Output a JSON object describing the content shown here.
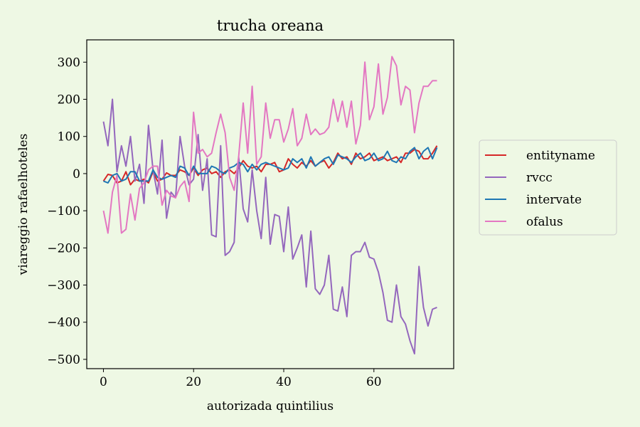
{
  "chart_data": {
    "type": "line",
    "title": "trucha oreana",
    "xlabel": "autorizada quintilius",
    "ylabel": "viareggio rafaelhoteles",
    "xlim": [
      -3.7,
      77.7
    ],
    "ylim": [
      -525,
      360
    ],
    "xticks": [
      0,
      20,
      40,
      60
    ],
    "yticks": [
      -500,
      -400,
      -300,
      -200,
      -100,
      0,
      100,
      200,
      300
    ],
    "grid": false,
    "legend_position": "center-right outside",
    "background": "#eef8e4",
    "series": [
      {
        "name": "entityname",
        "color": "#d62728",
        "values": [
          -20,
          -2,
          -5,
          -25,
          -20,
          5,
          -30,
          -15,
          -20,
          -15,
          -25,
          5,
          -20,
          -15,
          2,
          -5,
          -5,
          10,
          5,
          -5,
          15,
          -5,
          10,
          15,
          0,
          5,
          -10,
          5,
          10,
          0,
          15,
          35,
          20,
          15,
          20,
          5,
          25,
          25,
          30,
          5,
          10,
          40,
          25,
          15,
          30,
          20,
          35,
          20,
          30,
          35,
          15,
          30,
          55,
          40,
          45,
          25,
          55,
          40,
          45,
          55,
          35,
          40,
          45,
          35,
          40,
          45,
          30,
          55,
          55,
          65,
          60,
          40,
          40,
          55,
          75
        ]
      },
      {
        "name": "rvcc",
        "color": "#9467bd",
        "values": [
          140,
          75,
          200,
          5,
          75,
          20,
          100,
          -20,
          25,
          -80,
          130,
          10,
          -55,
          90,
          -120,
          -50,
          -65,
          100,
          20,
          -30,
          -15,
          105,
          -45,
          40,
          -165,
          -170,
          75,
          -220,
          -210,
          -185,
          45,
          -95,
          -130,
          10,
          -100,
          -175,
          -10,
          -190,
          -110,
          -115,
          -210,
          -90,
          -230,
          -200,
          -165,
          -305,
          -155,
          -310,
          -325,
          -300,
          -220,
          -365,
          -370,
          -305,
          -385,
          -220,
          -210,
          -210,
          -185,
          -225,
          -230,
          -265,
          -320,
          -395,
          -400,
          -300,
          -385,
          -405,
          -450,
          -485,
          -250,
          -360,
          -410,
          -365,
          -360
        ]
      },
      {
        "name": "intervate",
        "color": "#1f77b4",
        "values": [
          -20,
          -25,
          -5,
          0,
          -20,
          -15,
          5,
          5,
          -20,
          -20,
          -20,
          10,
          -10,
          -15,
          -10,
          -5,
          -10,
          20,
          15,
          -5,
          20,
          0,
          0,
          0,
          20,
          15,
          5,
          0,
          15,
          20,
          30,
          25,
          5,
          25,
          10,
          25,
          30,
          25,
          20,
          15,
          10,
          15,
          40,
          30,
          40,
          15,
          45,
          20,
          30,
          40,
          45,
          25,
          50,
          45,
          40,
          30,
          45,
          55,
          35,
          40,
          55,
          35,
          40,
          60,
          35,
          30,
          45,
          40,
          60,
          70,
          40,
          60,
          70,
          40,
          70
        ]
      },
      {
        "name": "ofalus",
        "color": "#e377c2",
        "values": [
          -100,
          -160,
          -50,
          -5,
          -160,
          -150,
          -55,
          -125,
          -40,
          -25,
          10,
          20,
          20,
          -85,
          -45,
          -60,
          -65,
          -35,
          -20,
          -75,
          165,
          55,
          65,
          45,
          55,
          110,
          160,
          110,
          -10,
          -45,
          45,
          190,
          55,
          235,
          25,
          45,
          190,
          95,
          145,
          145,
          85,
          120,
          175,
          75,
          95,
          160,
          105,
          120,
          105,
          110,
          125,
          200,
          140,
          195,
          125,
          195,
          80,
          130,
          300,
          145,
          180,
          295,
          160,
          205,
          315,
          290,
          185,
          235,
          225,
          110,
          190,
          235,
          235,
          250,
          250
        ]
      }
    ]
  }
}
